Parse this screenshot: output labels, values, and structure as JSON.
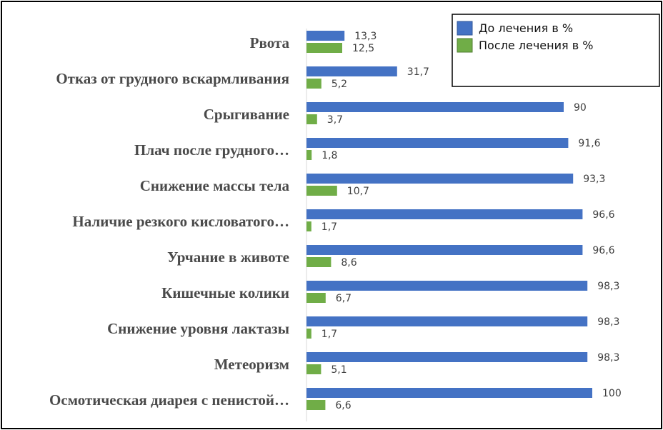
{
  "chart_data": {
    "type": "bar",
    "orientation": "horizontal",
    "categories": [
      "Рвота",
      "Отказ от грудного вскармливания",
      "Срыгивание",
      "Плач после грудного…",
      "Снижение массы тела",
      "Наличие резкого кисловатого…",
      "Урчание в животе",
      "Кишечные колики",
      "Снижение уровня лактазы",
      "Метеоризм",
      "Осмотическая диарея с пенистой…"
    ],
    "series": [
      {
        "name": "До лечения в %",
        "color": "#4472c4",
        "values": [
          13.3,
          31.7,
          90,
          91.6,
          93.3,
          96.6,
          96.6,
          98.3,
          98.3,
          98.3,
          100
        ],
        "labels": [
          "13,3",
          "31,7",
          "90",
          "91,6",
          "93,3",
          "96,6",
          "96,6",
          "98,3",
          "98,3",
          "98,3",
          "100"
        ]
      },
      {
        "name": "После лечения в %",
        "color": "#70ad47",
        "values": [
          12.5,
          5.2,
          3.7,
          1.8,
          10.7,
          1.7,
          8.6,
          6.7,
          1.7,
          5.1,
          6.6
        ],
        "labels": [
          "12,5",
          "5,2",
          "3,7",
          "1,8",
          "10,7",
          "1,7",
          "8,6",
          "6,7",
          "1,7",
          "5,1",
          "6,6"
        ]
      }
    ],
    "xlim": [
      0,
      100
    ],
    "grid": false,
    "legend_position": "top-right",
    "title": "",
    "xlabel": "",
    "ylabel": ""
  }
}
